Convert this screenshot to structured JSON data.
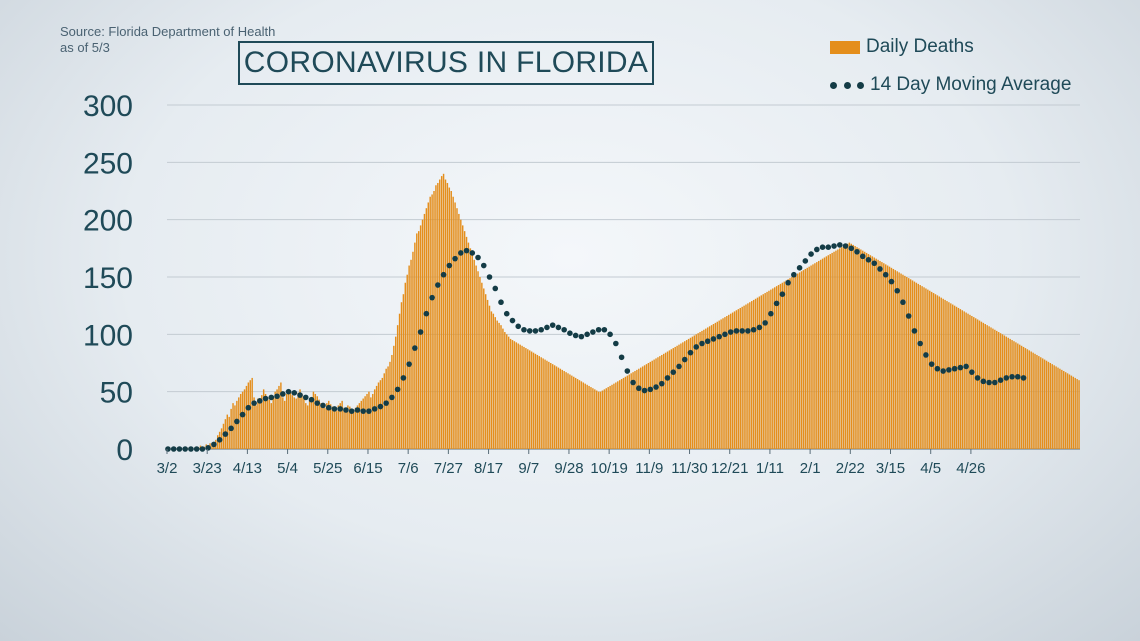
{
  "source": {
    "line1": "Source: Florida Department of Health",
    "line2": "as of 5/3"
  },
  "colors": {
    "bar": "#e48e1c",
    "dots": "#143c46",
    "grid": "#c3cbd2",
    "text": "#1f4a58"
  },
  "chart_data": {
    "type": "bar",
    "title": "CORONAVIRUS IN FLORIDA",
    "xlabel": "",
    "ylabel": "",
    "ylim": [
      0,
      300
    ],
    "yticks": [
      0,
      50,
      100,
      150,
      200,
      250,
      300
    ],
    "grid": true,
    "legend_position": "top-right",
    "x_tick_labels": [
      "3/2",
      "3/23",
      "4/13",
      "5/4",
      "5/25",
      "6/15",
      "7/6",
      "7/27",
      "8/17",
      "9/7",
      "9/28",
      "10/19",
      "11/9",
      "11/30",
      "12/21",
      "1/11",
      "2/1",
      "2/22",
      "3/15",
      "4/5",
      "4/26"
    ],
    "series": [
      {
        "name": "Daily Deaths",
        "kind": "bar",
        "start_date": "3/2",
        "values": [
          0,
          0,
          0,
          0,
          0,
          0,
          0,
          0,
          0,
          0,
          1,
          0,
          2,
          0,
          1,
          0,
          1,
          3,
          0,
          2,
          4,
          1,
          5,
          3,
          6,
          8,
          12,
          15,
          18,
          22,
          26,
          30,
          28,
          35,
          40,
          38,
          42,
          45,
          48,
          50,
          52,
          55,
          58,
          60,
          62,
          45,
          38,
          44,
          41,
          47,
          52,
          48,
          45,
          43,
          40,
          46,
          50,
          52,
          55,
          58,
          45,
          42,
          48,
          52,
          50,
          47,
          45,
          44,
          49,
          52,
          48,
          44,
          40,
          38,
          42,
          45,
          50,
          48,
          46,
          43,
          40,
          38,
          36,
          40,
          42,
          39,
          37,
          35,
          33,
          38,
          40,
          42,
          36,
          34,
          38,
          37,
          35,
          33,
          36,
          38,
          40,
          42,
          44,
          46,
          48,
          50,
          45,
          48,
          52,
          55,
          58,
          60,
          62,
          66,
          70,
          72,
          76,
          82,
          90,
          98,
          108,
          118,
          128,
          135,
          145,
          152,
          160,
          165,
          172,
          180,
          188,
          190,
          195,
          200,
          205,
          210,
          215,
          220,
          222,
          225,
          230,
          232,
          235,
          238,
          240,
          235,
          232,
          228,
          225,
          220,
          215,
          210,
          205,
          200,
          195,
          190,
          185,
          180,
          175,
          170,
          165,
          160,
          155,
          150,
          145,
          140,
          135,
          130,
          125,
          120,
          118,
          115,
          112,
          110,
          108,
          105,
          102,
          100,
          98,
          96,
          95,
          94,
          93,
          92,
          91,
          90,
          89,
          88,
          87,
          86,
          85,
          84,
          83,
          82,
          81,
          80,
          79,
          78,
          77,
          76,
          75,
          74,
          73,
          72,
          71,
          70,
          69,
          68,
          67,
          66,
          65,
          64,
          63,
          62,
          61,
          60,
          59,
          58,
          57,
          56,
          55,
          54,
          53,
          52,
          51,
          50,
          50,
          51,
          52,
          53,
          54,
          55,
          56,
          57,
          58,
          59,
          60,
          61,
          62,
          63,
          64,
          65,
          66,
          67,
          68,
          69,
          70,
          71,
          72,
          73,
          74,
          75,
          76,
          77,
          78,
          79,
          80,
          81,
          82,
          83,
          84,
          85,
          86,
          87,
          88,
          89,
          90,
          91,
          92,
          93,
          94,
          95,
          96,
          97,
          98,
          99,
          100,
          101,
          102,
          103,
          104,
          105,
          106,
          107,
          108,
          109,
          110,
          111,
          112,
          113,
          114,
          115,
          116,
          117,
          118,
          119,
          120,
          121,
          122,
          123,
          124,
          125,
          126,
          127,
          128,
          129,
          130,
          131,
          132,
          133,
          134,
          135,
          136,
          137,
          138,
          139,
          140,
          141,
          142,
          143,
          144,
          145,
          146,
          147,
          148,
          149,
          150,
          151,
          152,
          153,
          154,
          155,
          156,
          157,
          158,
          159,
          160,
          161,
          162,
          163,
          164,
          165,
          166,
          167,
          168,
          169,
          170,
          171,
          172,
          173,
          174,
          175,
          176,
          177,
          178,
          179,
          180,
          179,
          178,
          177,
          176,
          175,
          174,
          173,
          172,
          171,
          170,
          169,
          168,
          167,
          166,
          165,
          164,
          163,
          162,
          161,
          160,
          159,
          158,
          157,
          156,
          155,
          154,
          153,
          152,
          151,
          150,
          149,
          148,
          147,
          146,
          145,
          144,
          143,
          142,
          141,
          140,
          139,
          138,
          137,
          136,
          135,
          134,
          133,
          132,
          131,
          130,
          129,
          128,
          127,
          126,
          125,
          124,
          123,
          122,
          121,
          120,
          119,
          118,
          117,
          116,
          115,
          114,
          113,
          112,
          111,
          110,
          109,
          108,
          107,
          106,
          105,
          104,
          103,
          102,
          101,
          100,
          99,
          98,
          97,
          96,
          95,
          94,
          93,
          92,
          91,
          90,
          89,
          88,
          87,
          86,
          85,
          84,
          83,
          82,
          81,
          80,
          79,
          78,
          77,
          76,
          75,
          74,
          73,
          72,
          71,
          70,
          69,
          68,
          67,
          66,
          65,
          64,
          63,
          62,
          61,
          60
        ]
      },
      {
        "name": "14 Day Moving Average",
        "kind": "dotted-line",
        "start_date": "3/2",
        "step_days": 3,
        "values": [
          0,
          0,
          0,
          0,
          0,
          0,
          0,
          1,
          4,
          8,
          13,
          18,
          24,
          30,
          36,
          40,
          42,
          44,
          45,
          46,
          48,
          50,
          49,
          47,
          45,
          43,
          40,
          38,
          36,
          35,
          35,
          34,
          33,
          34,
          33,
          33,
          35,
          37,
          40,
          45,
          52,
          62,
          74,
          88,
          102,
          118,
          132,
          143,
          152,
          160,
          166,
          171,
          173,
          171,
          167,
          160,
          150,
          140,
          128,
          118,
          112,
          107,
          104,
          103,
          103,
          104,
          106,
          108,
          106,
          104,
          101,
          99,
          98,
          100,
          102,
          104,
          104,
          100,
          92,
          80,
          68,
          58,
          53,
          51,
          52,
          54,
          57,
          62,
          67,
          72,
          78,
          84,
          89,
          92,
          94,
          96,
          98,
          100,
          102,
          103,
          103,
          103,
          104,
          106,
          110,
          118,
          127,
          135,
          145,
          152,
          158,
          164,
          170,
          174,
          176,
          176,
          177,
          178,
          177,
          175,
          172,
          168,
          165,
          162,
          157,
          152,
          146,
          138,
          128,
          116,
          103,
          92,
          82,
          74,
          70,
          68,
          69,
          70,
          71,
          72,
          67,
          62,
          59,
          58,
          58,
          60,
          62,
          63,
          63,
          62
        ]
      }
    ]
  }
}
